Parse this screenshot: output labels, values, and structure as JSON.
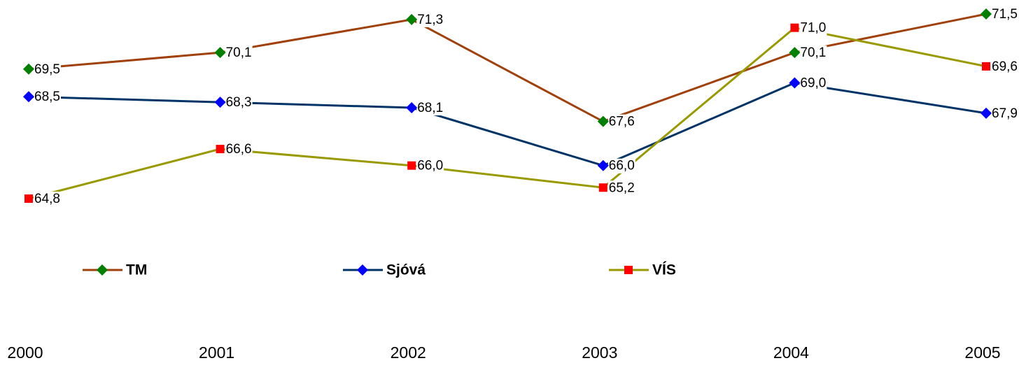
{
  "chart_data": {
    "type": "line",
    "categories": [
      "2000",
      "2001",
      "2002",
      "2003",
      "2004",
      "2005"
    ],
    "series": [
      {
        "name": "TM",
        "color": "#a0400a",
        "marker_color": "#008000",
        "marker": "diamond",
        "values": [
          69.5,
          70.1,
          71.3,
          67.6,
          70.1,
          71.5
        ],
        "value_labels": [
          "69,5",
          "70,1",
          "71,3",
          "67,6",
          "70,1",
          "71,5"
        ]
      },
      {
        "name": "Sjóvá",
        "color": "#003366",
        "marker_color": "#0000ff",
        "marker": "diamond",
        "values": [
          68.5,
          68.3,
          68.1,
          66.0,
          69.0,
          67.9
        ],
        "value_labels": [
          "68,5",
          "68,3",
          "68,1",
          "66,0",
          "69,0",
          "67,9"
        ]
      },
      {
        "name": "VÍS",
        "color": "#999900",
        "marker_color": "#ff0000",
        "marker": "square",
        "values": [
          64.8,
          66.6,
          66.0,
          65.2,
          71.0,
          69.6
        ],
        "value_labels": [
          "64,8",
          "66,6",
          "66,0",
          "65,2",
          "71,0",
          "69,6"
        ]
      }
    ],
    "legend": "bottom"
  }
}
